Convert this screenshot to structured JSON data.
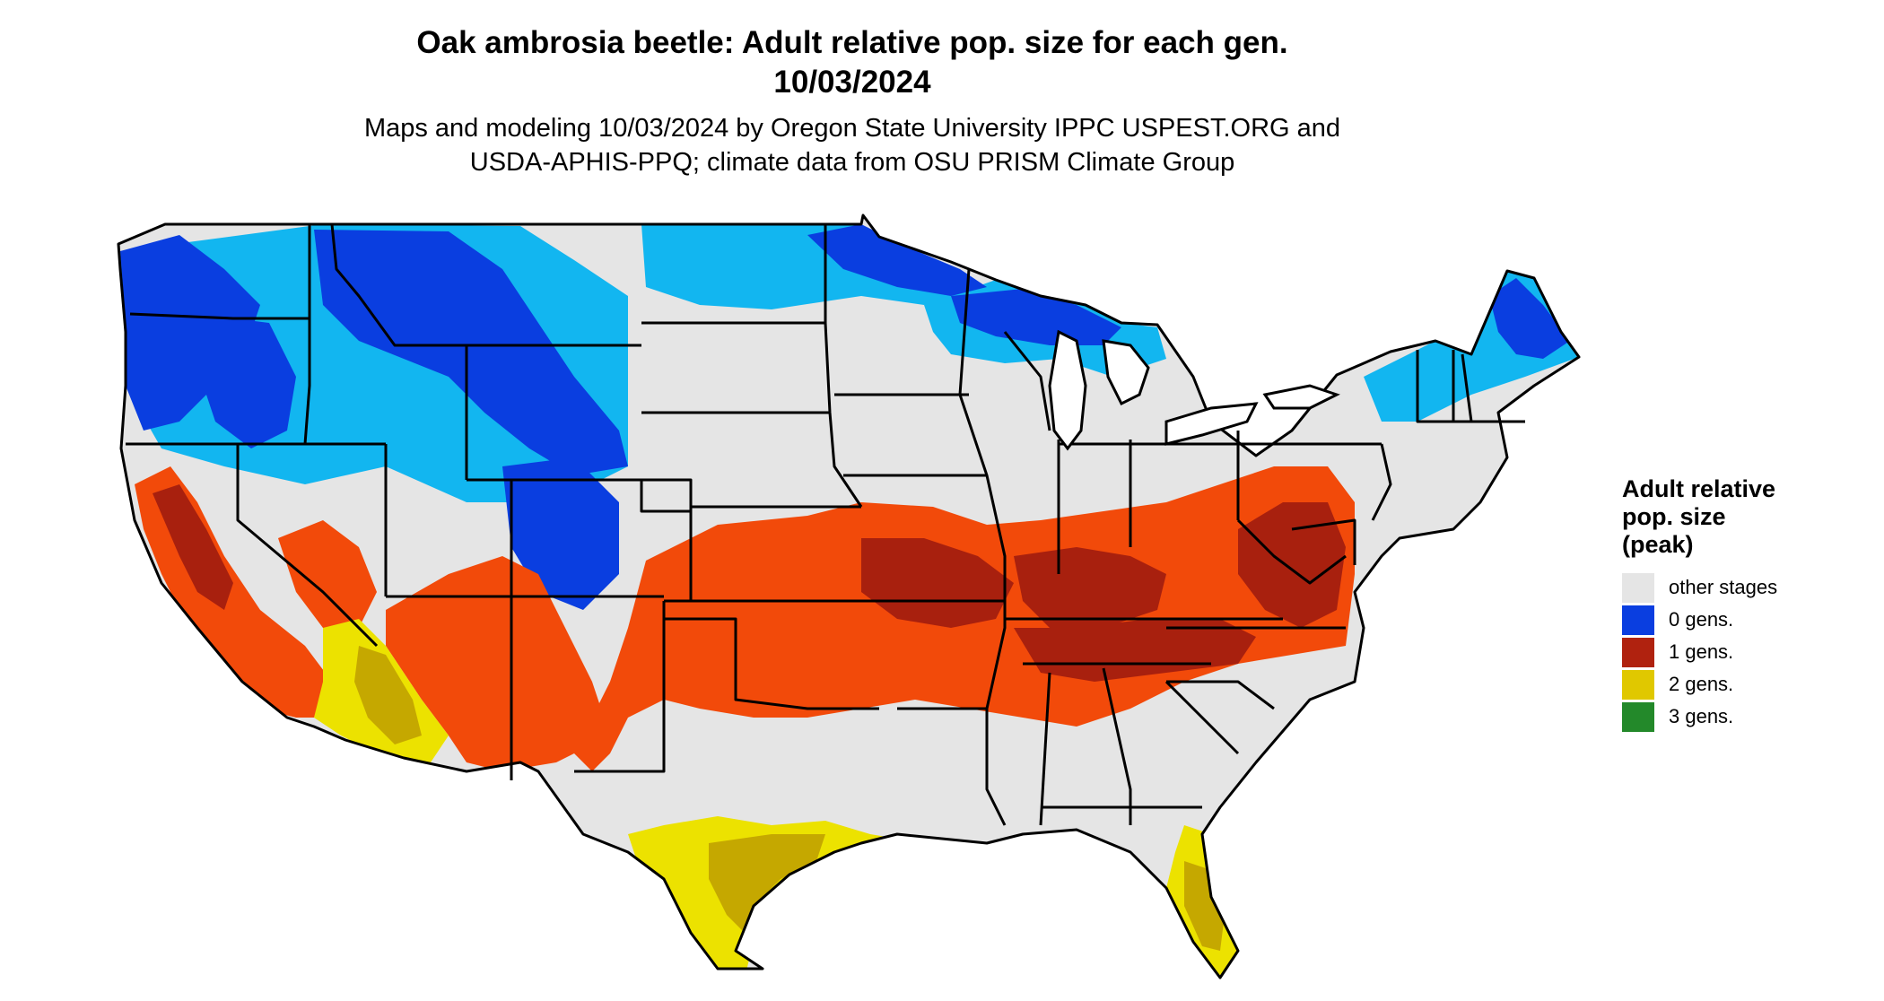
{
  "title": {
    "line1": "Oak ambrosia beetle: Adult relative pop. size for each gen.",
    "line2": "10/03/2024"
  },
  "subtitle": {
    "line1": "Maps and modeling 10/03/2024 by Oregon State University IPPC USPEST.ORG and",
    "line2": "USDA-APHIS-PPQ; climate data from OSU PRISM Climate Group"
  },
  "legend": {
    "title_lines": [
      "Adult relative",
      "pop. size",
      "(peak)"
    ],
    "items": [
      {
        "label": "other stages",
        "color": "#e5e5e5"
      },
      {
        "label": "0 gens.",
        "color": "#0a3ee0"
      },
      {
        "label": "1 gens.",
        "color": "#b0220f"
      },
      {
        "label": "2 gens.",
        "color": "#e0c800"
      },
      {
        "label": "3 gens.",
        "color": "#23892a"
      }
    ]
  },
  "map_colors": {
    "land": "#e5e5e5",
    "zero_gen_dark": "#0a3ee0",
    "zero_gen_light": "#12b6f0",
    "one_gen_light": "#f24a0a",
    "one_gen_dark": "#a8200e",
    "two_gen": "#ece200",
    "two_gen_dark": "#c5a800",
    "borders": "#000000"
  }
}
